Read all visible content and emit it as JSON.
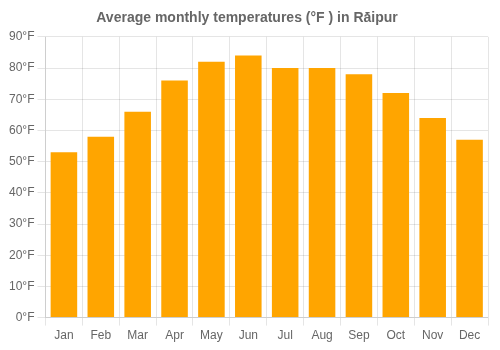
{
  "chart_data": {
    "type": "bar",
    "title": "Average monthly temperatures (°F ) in Rā̇ipur",
    "categories": [
      "Jan",
      "Feb",
      "Mar",
      "Apr",
      "May",
      "Jun",
      "Jul",
      "Aug",
      "Sep",
      "Oct",
      "Nov",
      "Dec"
    ],
    "values": [
      53,
      58,
      66,
      76,
      82,
      84,
      80,
      80,
      78,
      72,
      64,
      57
    ],
    "color": "#FFA500",
    "ylim": [
      0,
      90
    ],
    "yticks": [
      {
        "value": 0,
        "label": "0°F"
      },
      {
        "value": 10,
        "label": "10°F"
      },
      {
        "value": 20,
        "label": "20°F"
      },
      {
        "value": 30,
        "label": "30°F"
      },
      {
        "value": 40,
        "label": "40°F"
      },
      {
        "value": 50,
        "label": "50°F"
      },
      {
        "value": 60,
        "label": "60°F"
      },
      {
        "value": 70,
        "label": "70°F"
      },
      {
        "value": 80,
        "label": "80°F"
      },
      {
        "value": 90,
        "label": "90°F"
      }
    ],
    "grid": true
  }
}
